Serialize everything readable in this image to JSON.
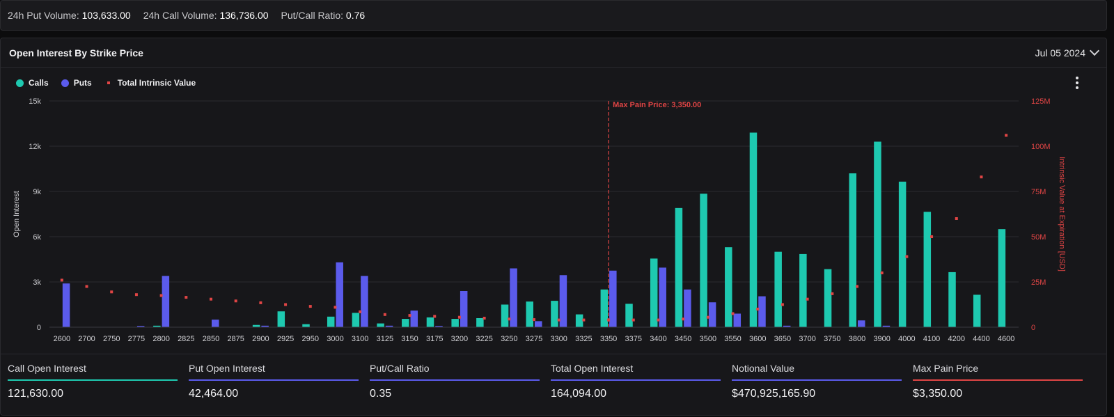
{
  "topbar": {
    "put_volume_label": "24h Put Volume:",
    "put_volume_value": "103,633.00",
    "call_volume_label": "24h Call Volume:",
    "call_volume_value": "136,736.00",
    "ratio_label": "Put/Call Ratio:",
    "ratio_value": "0.76"
  },
  "panel": {
    "title": "Open Interest By Strike Price",
    "date": "Jul 05 2024"
  },
  "legend": {
    "calls": "Calls",
    "puts": "Puts",
    "intrinsic": "Total Intrinsic Value"
  },
  "colors": {
    "calls": "#1ec9b0",
    "puts": "#5b5bec",
    "intrinsic": "#e04545",
    "max_pain": "#e04545"
  },
  "chart_data": {
    "type": "bar",
    "ylabel": "Open Interest",
    "y2label": "Intrinsic Value at Expiration [USD]",
    "ylim": [
      0,
      15000
    ],
    "y2lim": [
      0,
      125000000
    ],
    "yticks": [
      "0",
      "3k",
      "6k",
      "9k",
      "12k",
      "15k"
    ],
    "y2ticks": [
      "0",
      "25M",
      "50M",
      "75M",
      "100M",
      "125M"
    ],
    "grid": true,
    "legend_position": "top-left",
    "categories": [
      "2600",
      "2700",
      "2750",
      "2775",
      "2800",
      "2825",
      "2850",
      "2875",
      "2900",
      "2925",
      "2950",
      "3000",
      "3100",
      "3125",
      "3150",
      "3175",
      "3200",
      "3225",
      "3250",
      "3275",
      "3300",
      "3325",
      "3350",
      "3375",
      "3400",
      "3450",
      "3500",
      "3550",
      "3600",
      "3650",
      "3700",
      "3750",
      "3800",
      "3900",
      "4000",
      "4100",
      "4200",
      "4400",
      "4600"
    ],
    "series": [
      {
        "name": "Calls",
        "values": [
          0,
          0,
          0,
          0,
          100,
          0,
          0,
          0,
          150,
          1050,
          200,
          700,
          950,
          250,
          550,
          650,
          550,
          600,
          1500,
          1700,
          1750,
          850,
          2500,
          1550,
          4550,
          7900,
          8850,
          5300,
          12900,
          5000,
          4850,
          3850,
          10200,
          12300,
          9650,
          7650,
          3650,
          2150,
          6500
        ]
      },
      {
        "name": "Puts",
        "values": [
          2900,
          0,
          0,
          80,
          3400,
          0,
          500,
          0,
          100,
          0,
          0,
          4300,
          3400,
          100,
          1100,
          80,
          2400,
          0,
          3900,
          400,
          3450,
          0,
          3750,
          0,
          3950,
          2500,
          1650,
          900,
          2050,
          100,
          0,
          0,
          450,
          100,
          0,
          0,
          0,
          0,
          0
        ]
      },
      {
        "name": "Total Intrinsic Value",
        "values": [
          26000000,
          22500000,
          19500000,
          18000000,
          17500000,
          16500000,
          15500000,
          14500000,
          13500000,
          12500000,
          11500000,
          11000000,
          8500000,
          7000000,
          6500000,
          6000000,
          5500000,
          5000000,
          4500000,
          4200000,
          4000000,
          4000000,
          4000000,
          4000000,
          4000000,
          4500000,
          5500000,
          7500000,
          10000000,
          12500000,
          15500000,
          18500000,
          22500000,
          30000000,
          39000000,
          50000000,
          60000000,
          83000000,
          106000000
        ]
      }
    ],
    "annotations": [
      {
        "label": "Max Pain Price: 3,350.00",
        "x": "3350"
      }
    ]
  },
  "summary": [
    {
      "label": "Call Open Interest",
      "value": "121,630.00",
      "color": "#1ec9b0"
    },
    {
      "label": "Put Open Interest",
      "value": "42,464.00",
      "color": "#5b5bec"
    },
    {
      "label": "Put/Call Ratio",
      "value": "0.35",
      "color": "#5b5bec"
    },
    {
      "label": "Total Open Interest",
      "value": "164,094.00",
      "color": "#5b5bec"
    },
    {
      "label": "Notional Value",
      "value": "$470,925,165.90",
      "color": "#5b5bec"
    },
    {
      "label": "Max Pain Price",
      "value": "$3,350.00",
      "color": "#e04545"
    }
  ]
}
